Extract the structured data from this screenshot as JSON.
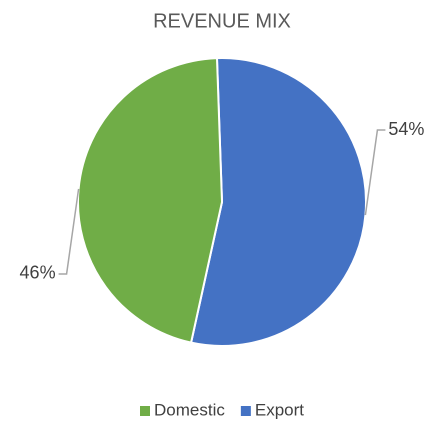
{
  "chart_data": {
    "type": "pie",
    "title": "REVENUE MIX",
    "categories": [
      "Domestic",
      "Export"
    ],
    "values": [
      46,
      54
    ],
    "value_labels": [
      "46%",
      "54%"
    ],
    "colors": [
      "#70ad47",
      "#4472c4"
    ],
    "legend": "bottom"
  }
}
